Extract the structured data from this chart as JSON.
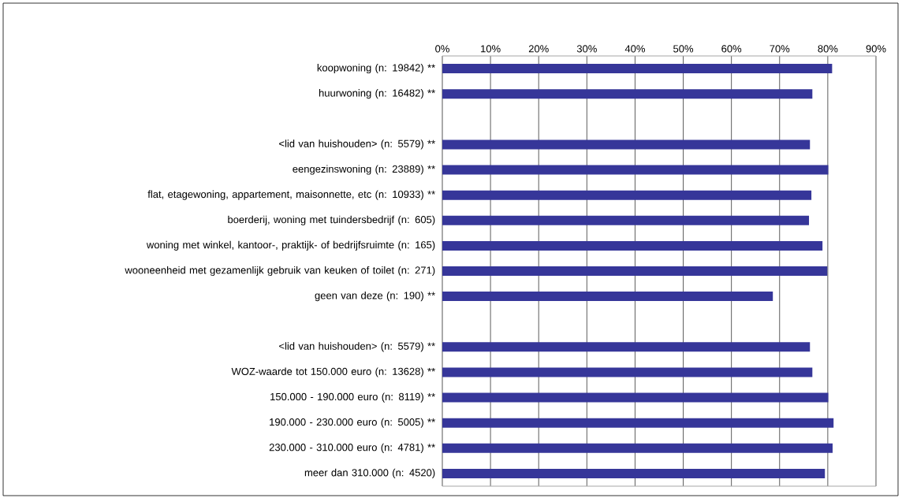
{
  "chart_data": {
    "type": "bar",
    "orientation": "horizontal",
    "color": "#363699",
    "grid": "x",
    "categories": [
      "koopwoning (n: 19842) **",
      "huurwoning (n: 16482) **",
      null,
      "<lid van huishouden> (n: 5579) **",
      "eengezinswoning (n: 23889) **",
      "flat, etagewoning, appartement, maisonnette, etc (n: 10933) **",
      "boerderij, woning met tuindersbedrijf (n: 605)",
      "woning met winkel, kantoor-, praktijk- of bedrijfsruimte (n: 165)",
      "wooneenheid met gezamenlijk gebruik van keuken of toilet (n: 271)",
      "geen van deze (n: 190) **",
      null,
      "<lid van huishouden> (n: 5579) **",
      "WOZ-waarde tot 150.000 euro (n: 13628) **",
      "150.000 - 190.000 euro (n: 8119) **",
      "190.000 - 230.000 euro (n: 5005) **",
      "230.000 - 310.000 euro (n: 4781) **",
      "meer dan 310.000 (n: 4520)"
    ],
    "values": [
      80.9,
      76.8,
      null,
      76.3,
      80.1,
      76.6,
      76.1,
      78.9,
      79.9,
      68.6,
      null,
      76.3,
      76.8,
      80.1,
      81.2,
      81.0,
      79.4
    ],
    "xlim": [
      0,
      90
    ],
    "xticks": [
      {
        "value": 0,
        "label": "0%"
      },
      {
        "value": 10,
        "label": "10%"
      },
      {
        "value": 20,
        "label": "20%"
      },
      {
        "value": 30,
        "label": "30%"
      },
      {
        "value": 40,
        "label": "40%"
      },
      {
        "value": 50,
        "label": "50%"
      },
      {
        "value": 60,
        "label": "60%"
      },
      {
        "value": 70,
        "label": "70%"
      },
      {
        "value": 80,
        "label": "80%"
      },
      {
        "value": 90,
        "label": "90%"
      }
    ]
  }
}
